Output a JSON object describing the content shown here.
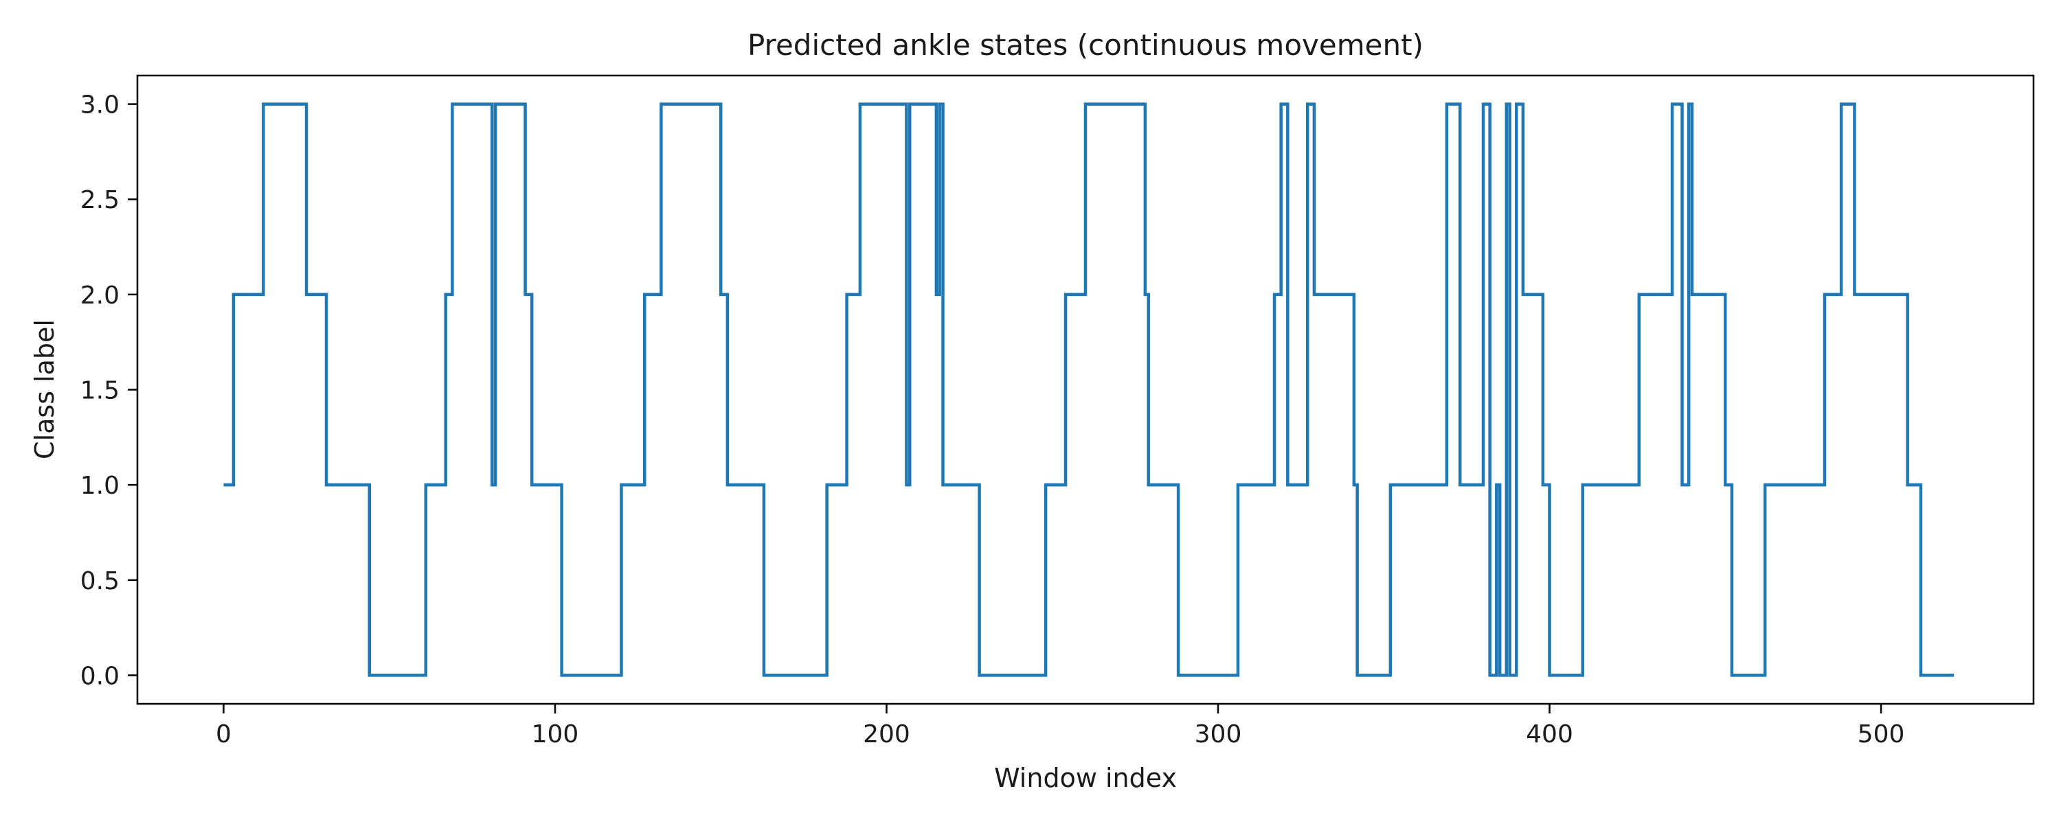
{
  "chart_data": {
    "type": "line",
    "drawstyle": "steps-post",
    "title": "Predicted ankle states (continuous movement)",
    "xlabel": "Window index",
    "ylabel": "Class label",
    "xlim": [
      -26,
      546
    ],
    "ylim": [
      -0.15,
      3.15
    ],
    "xticks": [
      0,
      100,
      200,
      300,
      400,
      500
    ],
    "xtick_labels": [
      "0",
      "100",
      "200",
      "300",
      "400",
      "500"
    ],
    "yticks": [
      0.0,
      0.5,
      1.0,
      1.5,
      2.0,
      2.5,
      3.0
    ],
    "ytick_labels": [
      "0.0",
      "0.5",
      "1.0",
      "1.5",
      "2.0",
      "2.5",
      "3.0"
    ],
    "grid": false,
    "legend": "none",
    "series": [
      {
        "color": "#1f77b4",
        "x": [
          0,
          3,
          12,
          25,
          31,
          44,
          61,
          67,
          69,
          81,
          82,
          91,
          93,
          102,
          120,
          127,
          132,
          150,
          152,
          163,
          182,
          188,
          192,
          206,
          207,
          215,
          216,
          217,
          228,
          248,
          254,
          260,
          278,
          279,
          288,
          306,
          317,
          319,
          321,
          327,
          329,
          341,
          342,
          352,
          369,
          373,
          380,
          382,
          384,
          385,
          387,
          388,
          390,
          392,
          398,
          400,
          410,
          427,
          437,
          440,
          442,
          443,
          453,
          455,
          465,
          483,
          488,
          492,
          508,
          512,
          519,
          522
        ],
        "y": [
          1,
          2,
          3,
          2,
          1,
          0,
          1,
          2,
          3,
          1,
          3,
          2,
          1,
          0,
          1,
          2,
          3,
          2,
          1,
          0,
          1,
          2,
          3,
          1,
          3,
          2,
          3,
          1,
          0,
          1,
          2,
          3,
          2,
          1,
          0,
          1,
          2,
          3,
          1,
          3,
          2,
          1,
          0,
          1,
          3,
          1,
          3,
          0,
          1,
          0,
          3,
          0,
          3,
          2,
          1,
          0,
          1,
          2,
          3,
          1,
          3,
          2,
          1,
          0,
          1,
          2,
          3,
          2,
          1,
          0,
          0,
          0
        ]
      }
    ]
  }
}
